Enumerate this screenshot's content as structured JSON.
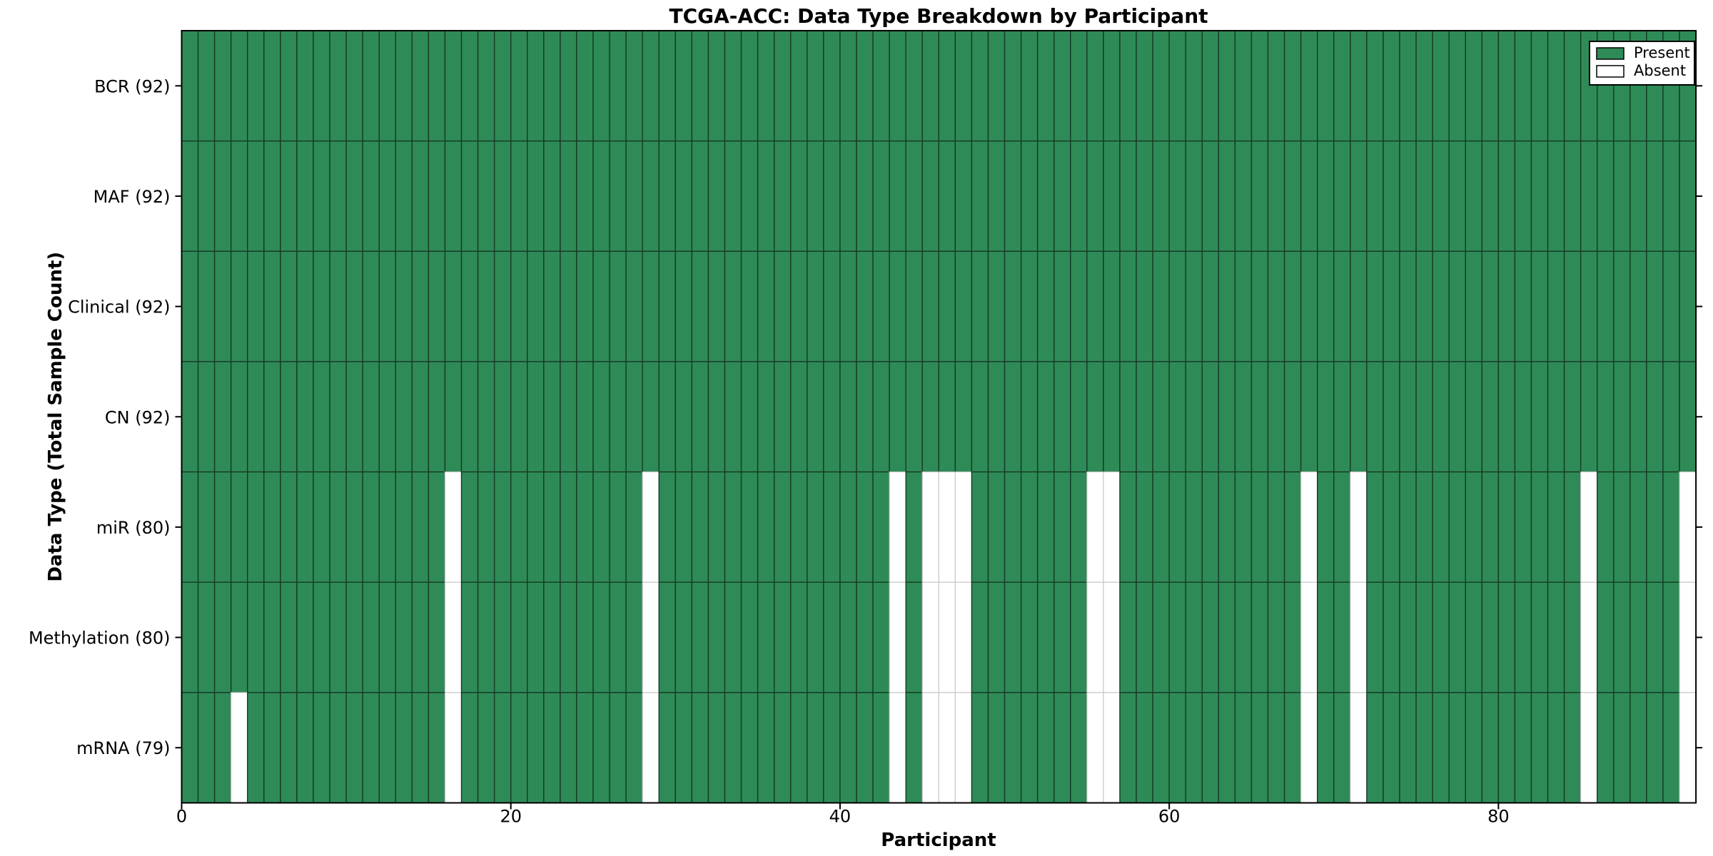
{
  "chart_data": {
    "type": "heatmap",
    "title": "TCGA-ACC: Data Type Breakdown by Participant",
    "xlabel": "Participant",
    "ylabel": "Data Type (Total Sample Count)",
    "n_participants": 92,
    "x_ticks": [
      0,
      20,
      40,
      60,
      80
    ],
    "x_range": [
      0,
      92
    ],
    "rows": [
      {
        "label": "BCR (92)",
        "data_type": "BCR",
        "present_count": 92,
        "absent_participants": []
      },
      {
        "label": "MAF (92)",
        "data_type": "MAF",
        "present_count": 92,
        "absent_participants": []
      },
      {
        "label": "Clinical (92)",
        "data_type": "Clinical",
        "present_count": 92,
        "absent_participants": []
      },
      {
        "label": "CN (92)",
        "data_type": "CN",
        "present_count": 92,
        "absent_participants": []
      },
      {
        "label": "miR (80)",
        "data_type": "miR",
        "present_count": 80,
        "absent_participants": [
          16,
          28,
          43,
          45,
          46,
          47,
          55,
          56,
          68,
          71,
          85,
          91
        ]
      },
      {
        "label": "Methylation (80)",
        "data_type": "Methylation",
        "present_count": 80,
        "absent_participants": [
          16,
          28,
          43,
          45,
          46,
          47,
          55,
          56,
          68,
          71,
          85,
          91
        ]
      },
      {
        "label": "mRNA (79)",
        "data_type": "mRNA",
        "present_count": 79,
        "absent_participants": [
          3,
          16,
          28,
          43,
          45,
          46,
          47,
          55,
          56,
          68,
          71,
          85,
          91
        ]
      }
    ],
    "legend": [
      {
        "label": "Present",
        "color": "#2e8b57"
      },
      {
        "label": "Absent",
        "color": "#ffffff"
      }
    ],
    "colors": {
      "present": "#2e8b57",
      "absent": "#ffffff",
      "present_edge": "#15382575",
      "present_edge_solid": "#173a27",
      "absent_edge": "#c9c9c9",
      "spine": "#000000",
      "text": "#000000",
      "background": "#ffffff"
    }
  }
}
